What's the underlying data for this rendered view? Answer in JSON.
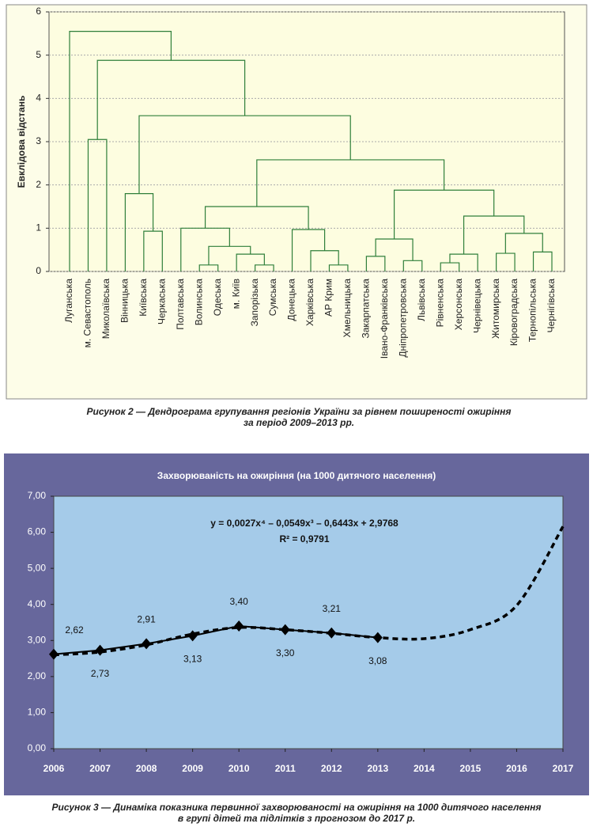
{
  "chart_data": [
    {
      "type": "dendrogram",
      "ylabel": "Евклідова відстань",
      "ylim": [
        0,
        6
      ],
      "yticks": [
        0,
        1,
        2,
        3,
        4,
        5,
        6
      ],
      "grid": true,
      "color": "#2f7f3a",
      "tree": {
        "height": 5.55,
        "children": [
          {
            "label": "Луганська"
          },
          {
            "height": 4.88,
            "children": [
              {
                "height": 3.05,
                "children": [
                  {
                    "label": "м. Севастополь"
                  },
                  {
                    "label": "Миколаївська"
                  }
                ]
              },
              {
                "height": 3.6,
                "children": [
                  {
                    "height": 1.8,
                    "children": [
                      {
                        "label": "Вінницька"
                      },
                      {
                        "height": 0.93,
                        "children": [
                          {
                            "label": "Київська"
                          },
                          {
                            "label": "Черкаська"
                          }
                        ]
                      }
                    ]
                  },
                  {
                    "height": 2.58,
                    "children": [
                      {
                        "height": 1.5,
                        "children": [
                          {
                            "height": 1.0,
                            "children": [
                              {
                                "label": "Полтавська"
                              },
                              {
                                "height": 0.58,
                                "children": [
                                  {
                                    "height": 0.15,
                                    "children": [
                                      {
                                        "label": "Волинська"
                                      },
                                      {
                                        "label": "Одеська"
                                      }
                                    ]
                                  },
                                  {
                                    "height": 0.4,
                                    "children": [
                                      {
                                        "label": "м. Київ"
                                      },
                                      {
                                        "height": 0.15,
                                        "children": [
                                          {
                                            "label": "Запорізька"
                                          },
                                          {
                                            "label": "Сумська"
                                          }
                                        ]
                                      }
                                    ]
                                  }
                                ]
                              }
                            ]
                          },
                          {
                            "height": 0.97,
                            "children": [
                              {
                                "label": "Донецька"
                              },
                              {
                                "height": 0.48,
                                "children": [
                                  {
                                    "label": "Харківська"
                                  },
                                  {
                                    "height": 0.15,
                                    "children": [
                                      {
                                        "label": "АР Крим"
                                      },
                                      {
                                        "label": "Хмельницька"
                                      }
                                    ]
                                  }
                                ]
                              }
                            ]
                          }
                        ]
                      },
                      {
                        "height": 1.88,
                        "children": [
                          {
                            "height": 0.75,
                            "children": [
                              {
                                "height": 0.35,
                                "children": [
                                  {
                                    "label": "Закарпатська"
                                  },
                                  {
                                    "label": "Івано-Франківська"
                                  }
                                ]
                              },
                              {
                                "height": 0.25,
                                "children": [
                                  {
                                    "label": "Дніпропетровська"
                                  },
                                  {
                                    "label": "Львівська"
                                  }
                                ]
                              }
                            ]
                          },
                          {
                            "height": 1.28,
                            "children": [
                              {
                                "height": 0.4,
                                "children": [
                                  {
                                    "height": 0.2,
                                    "children": [
                                      {
                                        "label": "Рівненська"
                                      },
                                      {
                                        "label": "Херсонська"
                                      }
                                    ]
                                  },
                                  {
                                    "label": "Чернівецька"
                                  }
                                ]
                              },
                              {
                                "height": 0.88,
                                "children": [
                                  {
                                    "height": 0.42,
                                    "children": [
                                      {
                                        "label": "Житомирська"
                                      },
                                      {
                                        "label": "Кіровоградська"
                                      }
                                    ]
                                  },
                                  {
                                    "height": 0.45,
                                    "children": [
                                      {
                                        "label": "Тернопільська"
                                      },
                                      {
                                        "label": "Чернігівська"
                                      }
                                    ]
                                  }
                                ]
                              }
                            ]
                          }
                        ]
                      }
                    ]
                  }
                ]
              }
            ]
          }
        ]
      },
      "caption": [
        "Рисунок 2 — Дендрограма групування регіонів України за рівнем поширеності ожиріння",
        "за період 2009–2013 рр."
      ]
    },
    {
      "type": "line",
      "title": "Захворюваність на ожиріння (на 1000 дитячого населення)",
      "xlim": [
        2006,
        2017
      ],
      "xticks": [
        2006,
        2007,
        2008,
        2009,
        2010,
        2011,
        2012,
        2013,
        2014,
        2015,
        2016,
        2017
      ],
      "ylim": [
        0,
        7
      ],
      "yticks": [
        {
          "value": 0,
          "label": "0,00"
        },
        {
          "value": 1,
          "label": "1,00"
        },
        {
          "value": 2,
          "label": "2,00"
        },
        {
          "value": 3,
          "label": "3,00"
        },
        {
          "value": 4,
          "label": "4,00"
        },
        {
          "value": 5,
          "label": "5,00"
        },
        {
          "value": 6,
          "label": "6,00"
        },
        {
          "value": 7,
          "label": "7,00"
        }
      ],
      "grid": false,
      "series": [
        {
          "color": "#000000",
          "style": "solid",
          "marker": "diamond",
          "x": [
            2006,
            2007,
            2008,
            2009,
            2010,
            2011,
            2012,
            2013
          ],
          "values": [
            2.62,
            2.73,
            2.91,
            3.13,
            3.4,
            3.3,
            3.21,
            3.08
          ],
          "value_labels": [
            "2,62",
            "2,73",
            "2,91",
            "3,13",
            "3,40",
            "3,30",
            "3,21",
            "3,08"
          ]
        },
        {
          "color": "#000000",
          "style": "dashed",
          "x": [
            2006,
            2007,
            2008,
            2009,
            2010,
            2011,
            2012,
            2013,
            2014,
            2015,
            2016,
            2017
          ],
          "values": [
            2.6,
            2.68,
            2.88,
            3.18,
            3.36,
            3.3,
            3.2,
            3.08,
            3.05,
            3.3,
            3.97,
            6.16
          ]
        }
      ],
      "annotations": [
        "y = 0,0027x⁴ – 0,0549x³ – 0,6443x + 2,9768",
        "R² = 0,9791"
      ],
      "caption": [
        "Рисунок 3 — Динаміка показника первинної захворюваності на ожиріння на 1000 дитячого населення",
        "в групі дітей та підлітків з прогнозом до 2017 р."
      ]
    }
  ]
}
